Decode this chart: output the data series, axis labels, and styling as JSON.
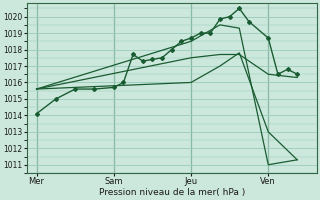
{
  "background_color": "#cce8dc",
  "grid_color": "#99ccbb",
  "line_color": "#1a5c32",
  "ylabel_text": "Pression niveau de la mer( hPa )",
  "x_tick_labels": [
    "Mer",
    "Sam",
    "Jeu",
    "Ven"
  ],
  "x_tick_positions": [
    0,
    4,
    8,
    12
  ],
  "ylim": [
    1010.5,
    1020.8
  ],
  "yticks": [
    1011,
    1012,
    1013,
    1014,
    1015,
    1016,
    1017,
    1018,
    1019,
    1020
  ],
  "vlines_x": [
    0,
    4,
    8,
    12
  ],
  "xlim": [
    -0.5,
    14.5
  ],
  "line1_x": [
    0,
    1,
    2,
    3,
    4,
    4.5,
    5,
    5.5,
    6,
    6.5,
    7,
    7.5,
    8,
    8.5,
    9,
    9.5,
    10,
    10.5,
    11,
    12,
    12.5,
    13,
    13.5
  ],
  "line1_y": [
    1014.1,
    1015.0,
    1015.6,
    1015.6,
    1015.7,
    1016.0,
    1017.7,
    1017.3,
    1017.4,
    1017.5,
    1018.0,
    1018.5,
    1018.7,
    1019.0,
    1019.0,
    1019.85,
    1020.0,
    1020.5,
    1019.7,
    1018.7,
    1016.5,
    1016.8,
    1016.5
  ],
  "line2_x": [
    0,
    8,
    9.5,
    10.5,
    12,
    13.5
  ],
  "line2_y": [
    1015.6,
    1017.5,
    1017.7,
    1017.7,
    1016.5,
    1016.3
  ],
  "line3_x": [
    0,
    8,
    9.5,
    10.5,
    12,
    13.5
  ],
  "line3_y": [
    1015.6,
    1018.5,
    1019.5,
    1019.3,
    1011.0,
    1011.3
  ],
  "line4_x": [
    0,
    8,
    9.5,
    10.5,
    12,
    13.5
  ],
  "line4_y": [
    1015.6,
    1016.0,
    1017.0,
    1017.8,
    1013.0,
    1011.3
  ]
}
